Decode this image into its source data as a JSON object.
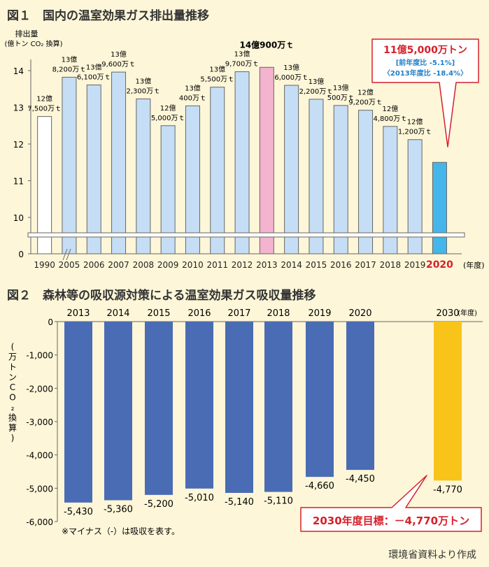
{
  "figure1": {
    "title": "図１　国内の温室効果ガス排出量推移",
    "ylabel": "排出量",
    "ylabel_unit": "(億トン CO₂ 換算)",
    "x_unit": "(年度)",
    "callout": {
      "main": "11億5,000万トン",
      "sub1": "[前年度比 -5.1%]",
      "sub2": "〈2013年度比 -18.4%〉"
    },
    "highlight_label": "14億900万ｔ",
    "chart_data": {
      "type": "bar",
      "categories": [
        "1990",
        "2005",
        "2006",
        "2007",
        "2008",
        "2009",
        "2010",
        "2011",
        "2012",
        "2013",
        "2014",
        "2015",
        "2016",
        "2017",
        "2018",
        "2019",
        "2020"
      ],
      "values": [
        12.75,
        13.82,
        13.61,
        13.96,
        13.23,
        12.5,
        13.04,
        13.55,
        13.97,
        14.09,
        13.6,
        13.22,
        13.05,
        12.92,
        12.48,
        12.12,
        11.5
      ],
      "tick_labels": [
        "0",
        "10",
        "11",
        "12",
        "13",
        "14"
      ],
      "y_ticks": [
        10,
        11,
        12,
        13,
        14
      ],
      "ylim": [
        9.5,
        14.5
      ],
      "y_break": true,
      "data_labels": [
        [
          "12億",
          "7,500万ｔ"
        ],
        [
          "13億",
          "8,200万ｔ"
        ],
        [
          "13億",
          "6,100万ｔ"
        ],
        [
          "13億",
          "9,600万ｔ"
        ],
        [
          "13億",
          "2,300万ｔ"
        ],
        [
          "12億",
          "5,000万ｔ"
        ],
        [
          "13億",
          "400万ｔ"
        ],
        [
          "13億",
          "5,500万ｔ"
        ],
        [
          "13億",
          "9,700万ｔ"
        ],
        [],
        [
          "13億",
          "6,000万ｔ"
        ],
        [
          "13億",
          "2,200万ｔ"
        ],
        [
          "13億",
          "500万ｔ"
        ],
        [
          "12億",
          "9,200万ｔ"
        ],
        [
          "12億",
          "4,800万ｔ"
        ],
        [
          "12億",
          "1,200万ｔ"
        ],
        []
      ],
      "colors": {
        "default": "#c5def5",
        "first": "#ffffff",
        "highlight": "#f4b3cf",
        "latest": "#44b6ea",
        "stroke": "#666666"
      }
    }
  },
  "figure2": {
    "title": "図２　森林等の吸収源対策による温室効果ガス吸収量推移",
    "ylabel": "(万トンCO₂換算)",
    "x_unit": "(年度)",
    "target_label": "2030年度目標：－4,770万トン",
    "note": "※マイナス（-）は吸収を表す。",
    "chart_data": {
      "type": "bar",
      "categories": [
        "2013",
        "2014",
        "2015",
        "2016",
        "2017",
        "2018",
        "2019",
        "2020",
        "2030"
      ],
      "values": [
        -5430,
        -5360,
        -5200,
        -5010,
        -5140,
        -5110,
        -4660,
        -4450,
        -4770
      ],
      "value_labels": [
        "-5,430",
        "-5,360",
        "-5,200",
        "-5,010",
        "-5,140",
        "-5,110",
        "-4,660",
        "-4,450",
        "-4,770"
      ],
      "y_ticks": [
        0,
        -1000,
        -2000,
        -3000,
        -4000,
        -5000,
        -6000
      ],
      "tick_labels": [
        "0",
        "-1,000",
        "-2,000",
        "-3,000",
        "-4,000",
        "-5,000",
        "-6,000"
      ],
      "ylim": [
        -6000,
        0
      ],
      "colors": {
        "bar": "#4a6cb5",
        "target": "#f8c41a"
      }
    }
  },
  "source": "環境省資料より作成"
}
